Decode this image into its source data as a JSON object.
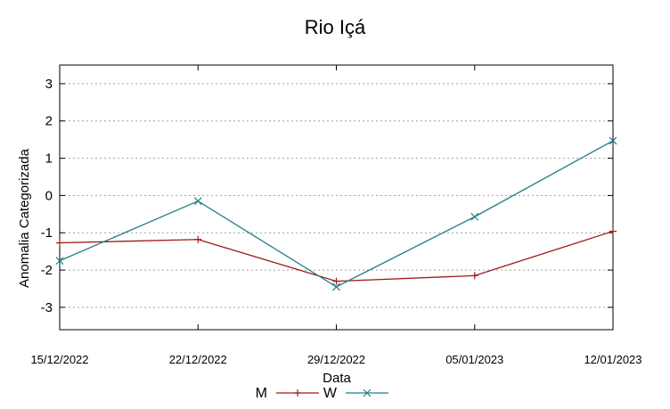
{
  "chart_data": {
    "type": "line",
    "title": "Rio Içá",
    "xlabel": "Data",
    "ylabel": "Anomalia Categorizada",
    "categories": [
      "15/12/2022",
      "22/12/2022",
      "29/12/2022",
      "05/01/2023",
      "12/01/2023"
    ],
    "ylim": [
      -3.6,
      3.5
    ],
    "yticks": [
      -3,
      -2,
      -1,
      0,
      1,
      2,
      3
    ],
    "grid": true,
    "legend_position": "bottom",
    "series": [
      {
        "name": "M",
        "color": "#a01818",
        "marker": "plus",
        "values": [
          -1.27,
          -1.18,
          -2.3,
          -2.15,
          -0.96
        ]
      },
      {
        "name": "W",
        "color": "#1f7f86",
        "marker": "x",
        "values": [
          -1.75,
          -0.15,
          -2.45,
          -0.57,
          1.47
        ]
      }
    ]
  }
}
